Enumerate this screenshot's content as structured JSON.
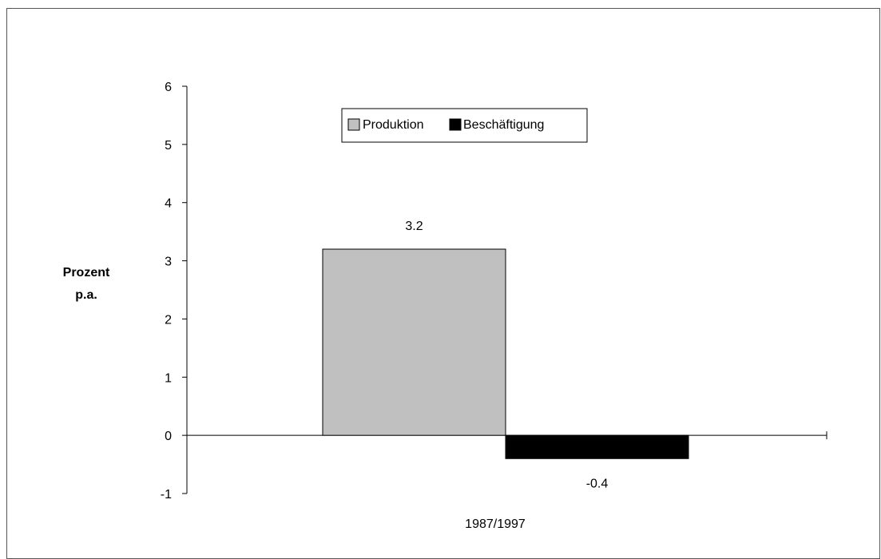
{
  "chart_data": {
    "type": "bar",
    "categories": [
      "1987/1997"
    ],
    "series": [
      {
        "name": "Produktion",
        "values": [
          3.2
        ],
        "color": "#c0c0c0"
      },
      {
        "name": "Beschäftigung",
        "values": [
          -0.4
        ],
        "color": "#000000"
      }
    ],
    "data_labels": [
      "3.2",
      "-0.4"
    ],
    "ylabel": [
      "Prozent",
      "p.a."
    ],
    "ylim": [
      -1,
      6
    ],
    "yticks": [
      -1,
      0,
      1,
      2,
      3,
      4,
      5,
      6
    ],
    "grid": false,
    "legend_position": "top"
  }
}
